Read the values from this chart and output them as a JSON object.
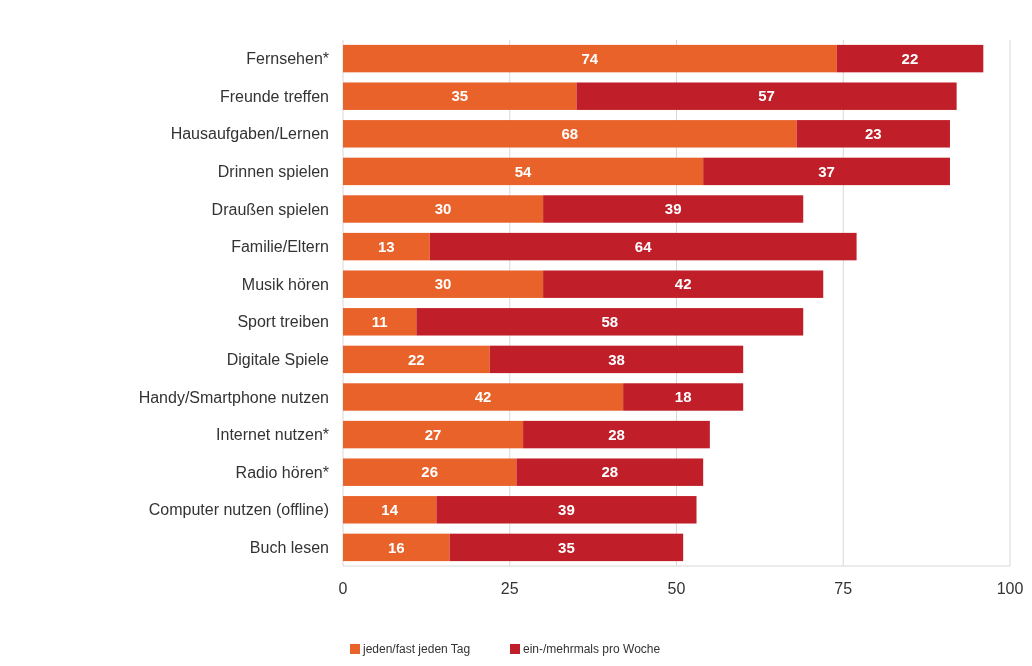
{
  "chart_data": {
    "type": "bar",
    "orientation": "horizontal",
    "stacked": true,
    "categories": [
      "Fernsehen*",
      "Freunde treffen",
      "Hausaufgaben/Lernen",
      "Drinnen spielen",
      "Draußen spielen",
      "Familie/Eltern",
      "Musik hören",
      "Sport treiben",
      "Digitale Spiele",
      "Handy/Smartphone nutzen",
      "Internet nutzen*",
      "Radio hören*",
      "Computer nutzen (offline)",
      "Buch lesen"
    ],
    "series": [
      {
        "name": "jeden/fast jeden Tag",
        "color": "#e8622a",
        "values": [
          74,
          35,
          68,
          54,
          30,
          13,
          30,
          11,
          22,
          42,
          27,
          26,
          14,
          16
        ]
      },
      {
        "name": "ein-/mehrmals pro Woche",
        "color": "#c01f2a",
        "values": [
          22,
          57,
          23,
          37,
          39,
          64,
          42,
          58,
          38,
          18,
          28,
          28,
          39,
          35
        ]
      }
    ],
    "xlim": [
      0,
      100
    ],
    "xticks": [
      0,
      25,
      50,
      75,
      100
    ],
    "grid": "x",
    "legend": "bottom",
    "data_labels": true
  }
}
